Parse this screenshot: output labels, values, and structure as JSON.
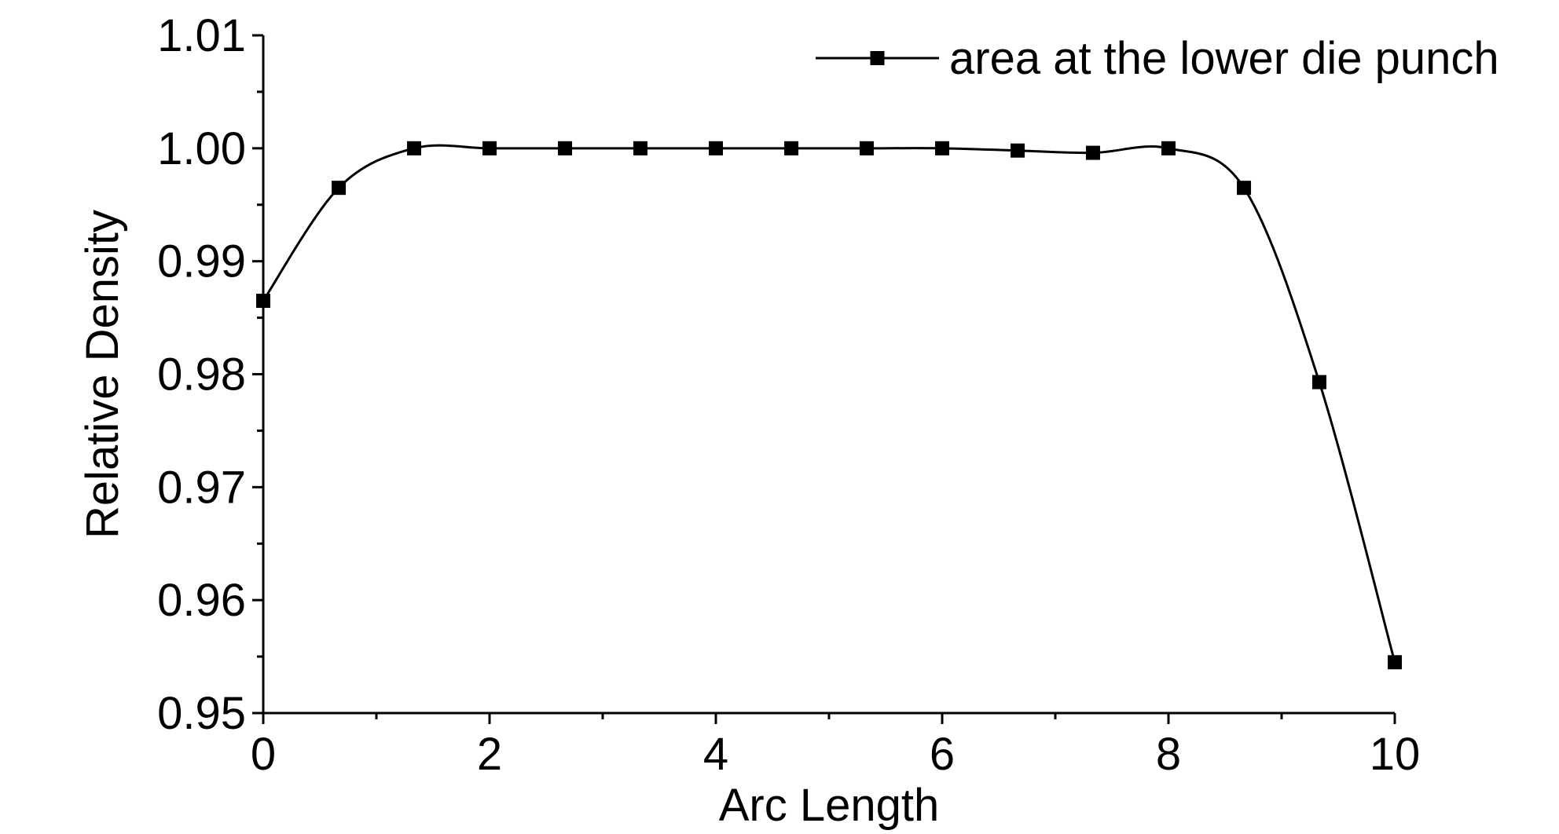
{
  "chart_data": {
    "type": "line",
    "xlabel": "Arc Length",
    "ylabel": "Relative Density",
    "xlim": [
      0,
      10
    ],
    "ylim": [
      0.95,
      1.01
    ],
    "x_ticks": [
      0,
      2,
      4,
      6,
      8,
      10
    ],
    "x_tick_labels": [
      "0",
      "2",
      "4",
      "6",
      "8",
      "10"
    ],
    "x_minor_ticks": [
      1,
      3,
      5,
      7,
      9
    ],
    "y_ticks": [
      0.95,
      0.96,
      0.97,
      0.98,
      0.99,
      1.0,
      1.01
    ],
    "y_tick_labels": [
      "0.95",
      "0.96",
      "0.97",
      "0.98",
      "0.99",
      "1.00",
      "1.01"
    ],
    "y_minor_ticks": [
      0.955,
      0.965,
      0.975,
      0.985,
      0.995,
      1.005
    ],
    "grid": false,
    "legend_position": "top-right",
    "series": [
      {
        "name": "area at the lower die punch",
        "color": "#000000",
        "marker": "square",
        "x": [
          0,
          0.667,
          1.333,
          2.0,
          2.667,
          3.333,
          4.0,
          4.667,
          5.333,
          6.0,
          6.667,
          7.333,
          8.0,
          8.667,
          9.333,
          10.0
        ],
        "y": [
          0.9865,
          0.9965,
          1.0,
          1.0,
          1.0,
          1.0,
          1.0,
          1.0,
          1.0,
          1.0,
          0.9998,
          0.9996,
          1.0,
          0.9965,
          0.9793,
          0.9545
        ]
      }
    ]
  }
}
